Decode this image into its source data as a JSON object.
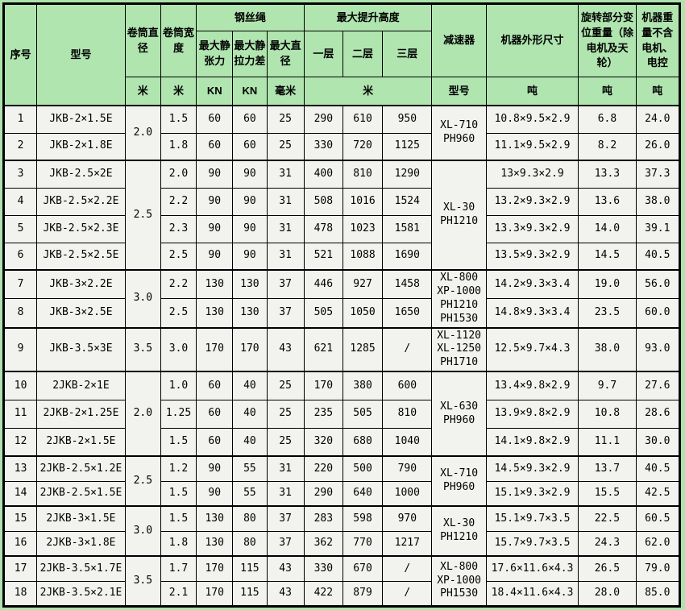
{
  "table": {
    "header": {
      "serial": "序号",
      "model": "型号",
      "drum_diameter": "卷筒直径",
      "drum_width": "卷筒宽度",
      "wire_rope_group": "钢丝绳",
      "max_static_tension": "最大静张力",
      "max_static_tension_diff": "最大静拉力差",
      "max_rope_diameter": "最大直径",
      "max_lift_height_group": "最大提升高度",
      "layer1": "一层",
      "layer2": "二层",
      "layer3": "三层",
      "reducer": "减速器",
      "machine_dimensions": "机器外形尺寸",
      "rotating_part_weight": "旋转部分变位重量（除电机及天轮）",
      "machine_weight": "机器重量不含电机、电控"
    },
    "units": {
      "drum_diameter": "米",
      "drum_width": "米",
      "max_static_tension": "KN",
      "max_static_tension_diff": "KN",
      "max_rope_diameter": "毫米",
      "lift_height": "米",
      "reducer": "型号",
      "machine_dimensions": "吨",
      "rotating_part_weight": "吨",
      "machine_weight": "吨"
    },
    "rows": [
      {
        "n": "1",
        "model": "JKB-2×1.5E",
        "dia": "2.0",
        "diaSpan": 2,
        "width": "1.5",
        "tension": "60",
        "diff": "60",
        "rope": "25",
        "h1": "290",
        "h2": "610",
        "h3": "950",
        "reducer": "XL-710\nPH960",
        "redSpan": 2,
        "dims": "10.8×9.5×2.9",
        "rot": "6.8",
        "wt": "24.0"
      },
      {
        "n": "2",
        "model": "JKB-2×1.8E",
        "width": "1.8",
        "tension": "60",
        "diff": "60",
        "rope": "25",
        "h1": "330",
        "h2": "720",
        "h3": "1125",
        "dims": "11.1×9.5×2.9",
        "rot": "8.2",
        "wt": "26.0"
      },
      {
        "n": "3",
        "model": "JKB-2.5×2E",
        "dia": "2.5",
        "diaSpan": 4,
        "width": "2.0",
        "tension": "90",
        "diff": "90",
        "rope": "31",
        "h1": "400",
        "h2": "810",
        "h3": "1290",
        "reducer": "XL-30\nPH1210",
        "redSpan": 4,
        "dims": "13×9.3×2.9",
        "rot": "13.3",
        "wt": "37.3"
      },
      {
        "n": "4",
        "model": "JKB-2.5×2.2E",
        "width": "2.2",
        "tension": "90",
        "diff": "90",
        "rope": "31",
        "h1": "508",
        "h2": "1016",
        "h3": "1524",
        "dims": "13.2×9.3×2.9",
        "rot": "13.6",
        "wt": "38.0"
      },
      {
        "n": "5",
        "model": "JKB-2.5×2.3E",
        "width": "2.3",
        "tension": "90",
        "diff": "90",
        "rope": "31",
        "h1": "478",
        "h2": "1023",
        "h3": "1581",
        "dims": "13.3×9.3×2.9",
        "rot": "14.0",
        "wt": "39.1"
      },
      {
        "n": "6",
        "model": "JKB-2.5×2.5E",
        "width": "2.5",
        "tension": "90",
        "diff": "90",
        "rope": "31",
        "h1": "521",
        "h2": "1088",
        "h3": "1690",
        "dims": "13.5×9.3×2.9",
        "rot": "14.5",
        "wt": "40.5"
      },
      {
        "n": "7",
        "model": "JKB-3×2.2E",
        "dia": "3.0",
        "diaSpan": 2,
        "width": "2.2",
        "tension": "130",
        "diff": "130",
        "rope": "37",
        "h1": "446",
        "h2": "927",
        "h3": "1458",
        "reducer": "XL-800\nXP-1000\nPH1210\nPH1530",
        "redSpan": 2,
        "dims": "14.2×9.3×3.4",
        "rot": "19.0",
        "wt": "56.0"
      },
      {
        "n": "8",
        "model": "JKB-3×2.5E",
        "width": "2.5",
        "tension": "130",
        "diff": "130",
        "rope": "37",
        "h1": "505",
        "h2": "1050",
        "h3": "1650",
        "dims": "14.8×9.3×3.4",
        "rot": "23.5",
        "wt": "60.0"
      },
      {
        "n": "9",
        "model": "JKB-3.5×3E",
        "dia": "3.5",
        "diaSpan": 1,
        "width": "3.0",
        "tension": "170",
        "diff": "170",
        "rope": "43",
        "h1": "621",
        "h2": "1285",
        "h3": "/",
        "reducer": "XL-1120\nXL-1250\nPH1710",
        "redSpan": 1,
        "dims": "12.5×9.7×4.3",
        "rot": "38.0",
        "wt": "93.0"
      },
      {
        "n": "10",
        "model": "2JKB-2×1E",
        "dia": "2.0",
        "diaSpan": 3,
        "width": "1.0",
        "tension": "60",
        "diff": "40",
        "rope": "25",
        "h1": "170",
        "h2": "380",
        "h3": "600",
        "reducer": "XL-630\nPH960",
        "redSpan": 3,
        "dims": "13.4×9.8×2.9",
        "rot": "9.7",
        "wt": "27.6"
      },
      {
        "n": "11",
        "model": "2JKB-2×1.25E",
        "width": "1.25",
        "tension": "60",
        "diff": "40",
        "rope": "25",
        "h1": "235",
        "h2": "505",
        "h3": "810",
        "dims": "13.9×9.8×2.9",
        "rot": "10.8",
        "wt": "28.6"
      },
      {
        "n": "12",
        "model": "2JKB-2×1.5E",
        "width": "1.5",
        "tension": "60",
        "diff": "40",
        "rope": "25",
        "h1": "320",
        "h2": "680",
        "h3": "1040",
        "dims": "14.1×9.8×2.9",
        "rot": "11.1",
        "wt": "30.0"
      },
      {
        "n": "13",
        "model": "2JKB-2.5×1.2E",
        "dia": "2.5",
        "diaSpan": 2,
        "width": "1.2",
        "tension": "90",
        "diff": "55",
        "rope": "31",
        "h1": "220",
        "h2": "500",
        "h3": "790",
        "reducer": "XL-710\nPH960",
        "redSpan": 2,
        "dims": "14.5×9.3×2.9",
        "rot": "13.7",
        "wt": "40.5"
      },
      {
        "n": "14",
        "model": "2JKB-2.5×1.5E",
        "width": "1.5",
        "tension": "90",
        "diff": "55",
        "rope": "31",
        "h1": "290",
        "h2": "640",
        "h3": "1000",
        "dims": "15.1×9.3×2.9",
        "rot": "15.5",
        "wt": "42.5"
      },
      {
        "n": "15",
        "model": "2JKB-3×1.5E",
        "dia": "3.0",
        "diaSpan": 2,
        "width": "1.5",
        "tension": "130",
        "diff": "80",
        "rope": "37",
        "h1": "283",
        "h2": "598",
        "h3": "970",
        "reducer": "XL-30\nPH1210",
        "redSpan": 2,
        "dims": "15.1×9.7×3.5",
        "rot": "22.5",
        "wt": "60.5"
      },
      {
        "n": "16",
        "model": "2JKB-3×1.8E",
        "width": "1.8",
        "tension": "130",
        "diff": "80",
        "rope": "37",
        "h1": "362",
        "h2": "770",
        "h3": "1217",
        "dims": "15.7×9.7×3.5",
        "rot": "24.3",
        "wt": "62.0"
      },
      {
        "n": "17",
        "model": "2JKB-3.5×1.7E",
        "dia": "3.5",
        "diaSpan": 2,
        "width": "1.7",
        "tension": "170",
        "diff": "115",
        "rope": "43",
        "h1": "330",
        "h2": "670",
        "h3": "/",
        "reducer": "XL-800\nXP-1000\nPH1530",
        "redSpan": 2,
        "dims": "17.6×11.6×4.3",
        "rot": "26.5",
        "wt": "79.0"
      },
      {
        "n": "18",
        "model": "2JKB-3.5×2.1E",
        "width": "2.1",
        "tension": "170",
        "diff": "115",
        "rope": "43",
        "h1": "422",
        "h2": "879",
        "h3": "/",
        "dims": "18.4×11.6×4.3",
        "rot": "28.0",
        "wt": "85.0"
      }
    ],
    "colors": {
      "header_bg": "#b0e5b0",
      "cell_bg": "#f2f3ee",
      "border": "#000000"
    }
  }
}
